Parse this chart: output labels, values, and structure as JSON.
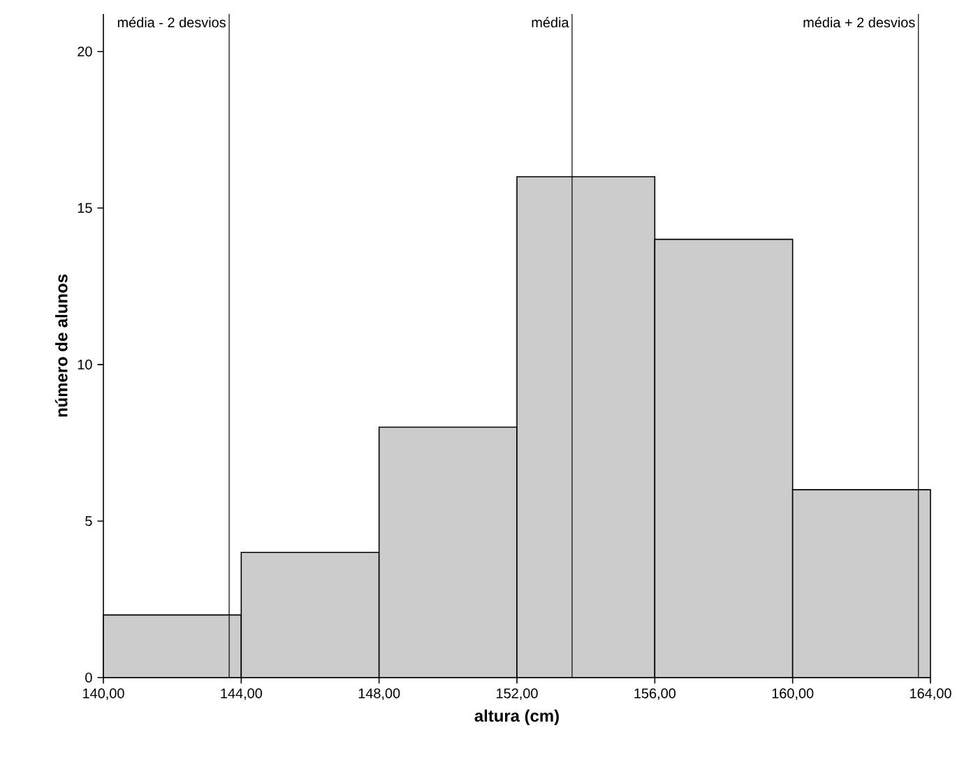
{
  "chart_data": {
    "type": "histogram",
    "xlabel": "altura (cm)",
    "ylabel": "número de alunos",
    "bins": [
      140,
      144,
      148,
      152,
      156,
      160,
      164
    ],
    "values": [
      2,
      4,
      8,
      16,
      14,
      6
    ],
    "color": "#cccccc",
    "xlim": [
      140,
      164
    ],
    "ylim": [
      0,
      21.2
    ],
    "xticks": [
      {
        "value": 140,
        "label": "140,00"
      },
      {
        "value": 144,
        "label": "144,00"
      },
      {
        "value": 148,
        "label": "148,00"
      },
      {
        "value": 152,
        "label": "152,00"
      },
      {
        "value": 156,
        "label": "156,00"
      },
      {
        "value": 160,
        "label": "160,00"
      },
      {
        "value": 164,
        "label": "164,00"
      }
    ],
    "yticks": [
      0,
      5,
      10,
      15,
      20
    ],
    "ref_lines": [
      {
        "axis": "x",
        "value": 143.65,
        "label": "média - 2 desvios"
      },
      {
        "axis": "x",
        "value": 153.6,
        "label": "média"
      },
      {
        "axis": "x",
        "value": 163.65,
        "label": "média + 2 desvios"
      }
    ],
    "grid": false
  }
}
